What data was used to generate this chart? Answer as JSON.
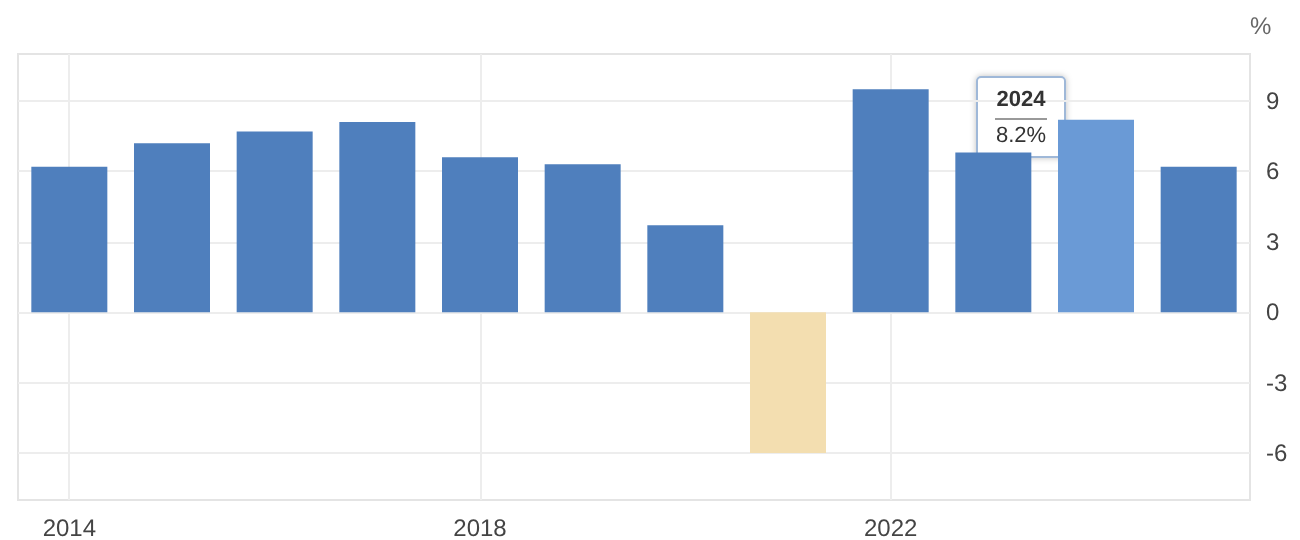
{
  "chart_data": {
    "type": "bar",
    "ylabel": "%",
    "x": [
      2014,
      2015,
      2016,
      2017,
      2018,
      2019,
      2020,
      2021,
      2022,
      2023,
      2024,
      2025
    ],
    "values": [
      6.2,
      7.2,
      7.7,
      8.1,
      6.6,
      6.3,
      3.7,
      -6.0,
      9.5,
      6.8,
      8.2,
      6.2
    ],
    "colors": [
      "#4f7fbd",
      "#4f7fbd",
      "#4f7fbd",
      "#4f7fbd",
      "#4f7fbd",
      "#4f7fbd",
      "#4f7fbd",
      "#f3deb0",
      "#4f7fbd",
      "#4f7fbd",
      "#6a9ad6",
      "#4f7fbd"
    ],
    "xlim": [
      2013.5,
      2025.5
    ],
    "xticks": [
      2014,
      2018,
      2022
    ],
    "ylim": [
      -8,
      11
    ],
    "yticks": [
      -6,
      -3,
      0,
      3,
      6,
      9
    ],
    "grid": true,
    "annotations": [
      "2024",
      "8.2%"
    ]
  }
}
